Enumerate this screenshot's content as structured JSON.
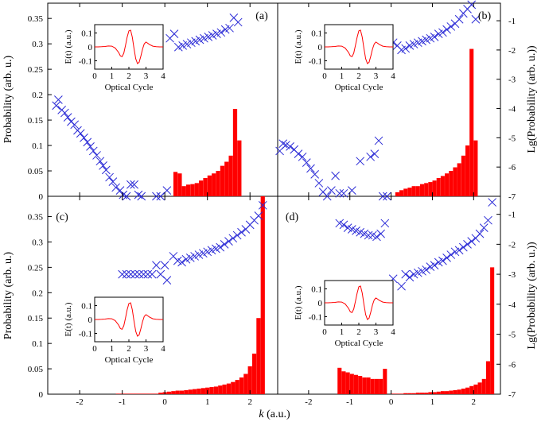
{
  "chart_data": {
    "type": "bar",
    "description_units": "Probability bars (red, left axis linear) and Lg(Probability) crosses (blue, right axis log10)",
    "x_axis": {
      "label_italic": "k",
      "label_rest": " (a.u.)",
      "range": [
        -2.75,
        2.65
      ],
      "ticks": [
        -2,
        -1,
        0,
        1,
        2
      ]
    },
    "left_axis": {
      "label": "Probability (arb. u.)",
      "top_range": [
        0,
        0.38
      ],
      "bottom_range": [
        0,
        0.39
      ],
      "top_ticks": [
        0,
        0.05,
        0.1,
        0.15,
        0.2,
        0.25,
        0.3,
        0.35
      ],
      "bottom_ticks": [
        0,
        0.05,
        0.1,
        0.15,
        0.2,
        0.25,
        0.3,
        0.35
      ]
    },
    "right_axis": {
      "label": "Lg(Probability (arb. u.))",
      "top_range": [
        -7,
        -0.4
      ],
      "bottom_range": [
        -7,
        -0.4
      ],
      "top_ticks": [
        -7,
        -6,
        -5,
        -4,
        -3,
        -2,
        -1
      ],
      "bottom_ticks": [
        -7,
        -6,
        -5,
        -4,
        -3,
        -2,
        -1
      ]
    },
    "inset": {
      "ylabel": "E(t) (a.u.)",
      "xlabel": "Optical Cycle",
      "xticks": [
        0,
        1,
        2,
        3,
        4
      ],
      "xrange": [
        0,
        4
      ],
      "yticks": [
        -0.1,
        0,
        0.1
      ],
      "ytick_labels": [
        "-0.1",
        "0",
        "0.1"
      ],
      "yrange": [
        -0.16,
        0.16
      ]
    },
    "panels": [
      {
        "label": "(a)",
        "side": "left",
        "row": "top",
        "bars": {
          "x": [
            0.25,
            0.35,
            0.45,
            0.55,
            0.65,
            0.75,
            0.85,
            0.95,
            1.05,
            1.15,
            1.25,
            1.35,
            1.45,
            1.55,
            1.65,
            1.75
          ],
          "y": [
            0.048,
            0.045,
            0.02,
            0.023,
            0.024,
            0.026,
            0.031,
            0.036,
            0.041,
            0.045,
            0.05,
            0.06,
            0.068,
            0.08,
            0.172,
            0.11
          ]
        },
        "crosses": {
          "x": [
            -2.55,
            -2.5,
            -2.42,
            -2.35,
            -2.28,
            -2.2,
            -2.12,
            -2.05,
            -1.98,
            -1.9,
            -1.82,
            -1.75,
            -1.68,
            -1.6,
            -1.52,
            -1.45,
            -1.38,
            -1.3,
            -1.22,
            -1.15,
            -1.05,
            -0.98,
            -0.9,
            -0.8,
            -0.72,
            -0.62,
            -0.55,
            -0.2,
            -0.1,
            0.05,
            0.12,
            0.22,
            0.32,
            0.42,
            0.52,
            0.62,
            0.72,
            0.82,
            0.92,
            1.02,
            1.12,
            1.22,
            1.32,
            1.42,
            1.52,
            1.62,
            1.72
          ],
          "y": [
            -3.9,
            -3.7,
            -4.05,
            -4.15,
            -4.3,
            -4.45,
            -4.55,
            -4.75,
            -4.85,
            -5.0,
            -5.15,
            -5.3,
            -5.45,
            -5.6,
            -5.8,
            -5.95,
            -6.1,
            -6.35,
            -6.5,
            -6.7,
            -6.8,
            -6.95,
            -7.0,
            -6.6,
            -6.6,
            -6.95,
            -7.0,
            -7.0,
            -7.0,
            -6.8,
            -1.6,
            -1.45,
            -1.9,
            -1.85,
            -1.8,
            -1.75,
            -1.7,
            -1.65,
            -1.6,
            -1.55,
            -1.5,
            -1.45,
            -1.4,
            -1.3,
            -1.25,
            -0.9,
            -1.05
          ]
        },
        "inset_pos": "top-left"
      },
      {
        "label": "(b)",
        "side": "right",
        "row": "top",
        "bars": {
          "x": [
            0.15,
            0.25,
            0.35,
            0.45,
            0.55,
            0.65,
            0.75,
            0.85,
            0.95,
            1.05,
            1.15,
            1.25,
            1.35,
            1.45,
            1.55,
            1.65,
            1.75,
            1.85,
            1.95,
            2.05
          ],
          "y": [
            0.008,
            0.012,
            0.015,
            0.017,
            0.02,
            0.02,
            0.024,
            0.026,
            0.028,
            0.031,
            0.036,
            0.04,
            0.045,
            0.05,
            0.057,
            0.065,
            0.08,
            0.1,
            0.29,
            0.11
          ]
        },
        "crosses": {
          "x": [
            -2.7,
            -2.62,
            -2.55,
            -2.45,
            -2.35,
            -2.25,
            -2.15,
            -2.05,
            -1.95,
            -1.85,
            -1.75,
            -1.65,
            -1.55,
            -1.45,
            -1.35,
            -1.25,
            -1.15,
            -0.95,
            -0.75,
            -0.5,
            -0.4,
            -0.3,
            -0.2,
            -0.1,
            0.05,
            0.15,
            0.25,
            0.35,
            0.45,
            0.55,
            0.65,
            0.75,
            0.85,
            0.95,
            1.05,
            1.15,
            1.25,
            1.35,
            1.45,
            1.55,
            1.65,
            1.75,
            1.85,
            1.95,
            2.05
          ],
          "y": [
            -5.45,
            -5.2,
            -5.25,
            -5.3,
            -5.4,
            -5.55,
            -5.65,
            -5.85,
            -6.05,
            -6.25,
            -6.55,
            -6.85,
            -7.0,
            -6.8,
            -6.3,
            -6.9,
            -6.9,
            -6.8,
            -5.8,
            -5.65,
            -5.55,
            -5.1,
            -7.0,
            -7.0,
            -1.75,
            -1.85,
            -2.0,
            -1.95,
            -1.85,
            -1.8,
            -1.75,
            -1.7,
            -1.65,
            -1.6,
            -1.55,
            -1.45,
            -1.4,
            -1.3,
            -1.2,
            -1.1,
            -0.95,
            -0.75,
            -0.6,
            -0.45,
            -0.95
          ]
        },
        "inset_pos": "top-left"
      },
      {
        "label": "(c)",
        "side": "left",
        "row": "bottom",
        "bars": {
          "x": [
            -1.1,
            -1.0,
            -0.9,
            -0.8,
            -0.7,
            -0.6,
            -0.5,
            -0.4,
            -0.3,
            -0.2,
            -0.1,
            0.0,
            0.1,
            0.2,
            0.3,
            0.4,
            0.5,
            0.6,
            0.7,
            0.8,
            0.9,
            1.0,
            1.1,
            1.2,
            1.3,
            1.4,
            1.5,
            1.6,
            1.7,
            1.8,
            1.9,
            2.0,
            2.1,
            2.2,
            2.3
          ],
          "y": [
            0.001,
            0.001,
            0.001,
            0.001,
            0.001,
            0.001,
            0.001,
            0.001,
            0.001,
            0.001,
            0.003,
            0.004,
            0.005,
            0.006,
            0.007,
            0.007,
            0.008,
            0.009,
            0.01,
            0.011,
            0.012,
            0.013,
            0.014,
            0.015,
            0.017,
            0.019,
            0.021,
            0.024,
            0.028,
            0.033,
            0.04,
            0.055,
            0.08,
            0.15,
            0.39
          ]
        },
        "crosses": {
          "x": [
            -1.0,
            -0.9,
            -0.8,
            -0.7,
            -0.6,
            -0.5,
            -0.4,
            -0.3,
            -0.2,
            -0.1,
            0.0,
            0.05,
            0.2,
            0.3,
            0.4,
            0.5,
            0.6,
            0.7,
            0.8,
            0.9,
            1.0,
            1.1,
            1.2,
            1.3,
            1.4,
            1.5,
            1.6,
            1.7,
            1.8,
            1.9,
            2.0,
            2.1,
            2.2,
            2.3
          ],
          "y": [
            -3.0,
            -3.0,
            -3.0,
            -3.0,
            -3.0,
            -3.0,
            -3.0,
            -3.0,
            -2.7,
            -3.0,
            -2.7,
            -3.2,
            -2.4,
            -2.55,
            -2.6,
            -2.5,
            -2.45,
            -2.4,
            -2.35,
            -2.3,
            -2.25,
            -2.2,
            -2.15,
            -2.1,
            -2.0,
            -1.9,
            -1.8,
            -1.7,
            -1.6,
            -1.5,
            -1.35,
            -1.2,
            -1.05,
            -0.7
          ]
        },
        "inset_pos": "bottom-left"
      },
      {
        "label": "(d)",
        "side": "right",
        "row": "bottom",
        "bars": {
          "x": [
            -1.25,
            -1.15,
            -1.05,
            -0.95,
            -0.85,
            -0.75,
            -0.65,
            -0.55,
            -0.45,
            -0.35,
            -0.25,
            -0.15,
            0.05,
            0.15,
            0.25,
            0.35,
            0.45,
            0.55,
            0.65,
            0.75,
            0.85,
            0.95,
            1.05,
            1.15,
            1.25,
            1.35,
            1.45,
            1.55,
            1.65,
            1.75,
            1.85,
            1.95,
            2.05,
            2.15,
            2.25,
            2.35,
            2.45
          ],
          "y": [
            0.052,
            0.045,
            0.043,
            0.04,
            0.038,
            0.036,
            0.033,
            0.033,
            0.03,
            0.03,
            0.03,
            0.05,
            0.001,
            0.001,
            0.001,
            0.002,
            0.002,
            0.002,
            0.003,
            0.003,
            0.003,
            0.004,
            0.004,
            0.005,
            0.006,
            0.006,
            0.007,
            0.008,
            0.009,
            0.011,
            0.013,
            0.016,
            0.019,
            0.023,
            0.03,
            0.065,
            0.25
          ]
        },
        "crosses": {
          "x": [
            -1.25,
            -1.15,
            -1.05,
            -0.95,
            -0.85,
            -0.75,
            -0.65,
            -0.55,
            -0.45,
            -0.35,
            -0.25,
            -0.15,
            0.05,
            0.25,
            0.35,
            0.45,
            0.55,
            0.65,
            0.75,
            0.85,
            0.95,
            1.05,
            1.15,
            1.25,
            1.35,
            1.45,
            1.55,
            1.65,
            1.75,
            1.85,
            1.95,
            2.05,
            2.15,
            2.25,
            2.35,
            2.45
          ],
          "y": [
            -1.3,
            -1.35,
            -1.45,
            -1.5,
            -1.55,
            -1.6,
            -1.65,
            -1.7,
            -1.7,
            -1.75,
            -1.65,
            -1.3,
            -3.15,
            -3.4,
            -3.0,
            -3.1,
            -3.0,
            -2.95,
            -2.9,
            -2.85,
            -2.75,
            -2.7,
            -2.6,
            -2.55,
            -2.45,
            -2.35,
            -2.25,
            -2.2,
            -2.1,
            -2.0,
            -1.9,
            -1.8,
            -1.65,
            -1.45,
            -1.2,
            -0.6
          ]
        },
        "inset_pos": "middle-left"
      }
    ],
    "inset_field": {
      "t": [
        0,
        0.2,
        0.4,
        0.6,
        0.8,
        1.0,
        1.2,
        1.4,
        1.5,
        1.6,
        1.7,
        1.8,
        1.9,
        2.0,
        2.1,
        2.2,
        2.3,
        2.4,
        2.5,
        2.6,
        2.7,
        2.8,
        2.9,
        3.0,
        3.2,
        3.4,
        3.6,
        3.8,
        4.0
      ],
      "E": [
        0,
        0.0,
        0.001,
        0.003,
        0.006,
        0.005,
        -0.008,
        -0.04,
        -0.065,
        -0.07,
        -0.045,
        0.01,
        0.07,
        0.115,
        0.12,
        0.07,
        -0.01,
        -0.085,
        -0.12,
        -0.11,
        -0.065,
        -0.015,
        0.022,
        0.035,
        0.018,
        0.005,
        0.001,
        0,
        0
      ]
    }
  }
}
